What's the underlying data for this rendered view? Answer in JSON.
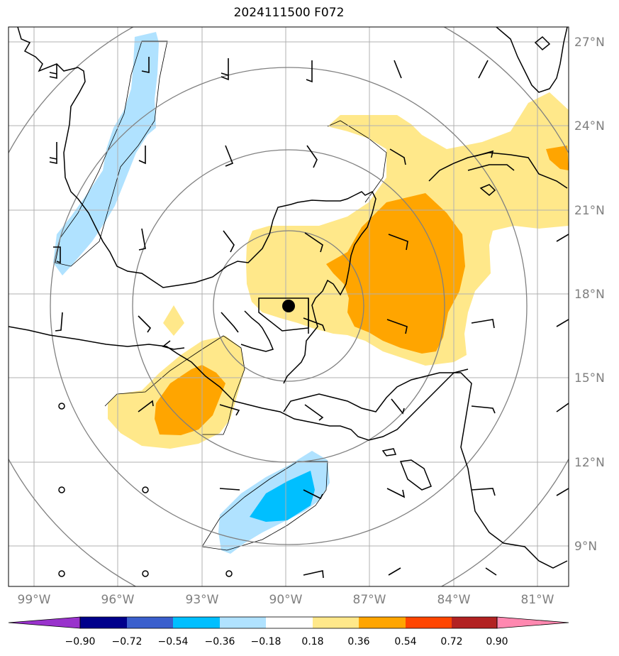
{
  "title": "2024111500 F072",
  "lat_labels": [
    "27°N",
    "24°N",
    "21°N",
    "18°N",
    "15°N",
    "12°N",
    "9°N"
  ],
  "lon_labels": [
    "99°W",
    "96°W",
    "93°W",
    "90°W",
    "87°W",
    "84°W",
    "81°W"
  ],
  "colorbar": {
    "ticks": [
      "−0.90",
      "−0.72",
      "−0.54",
      "−0.36",
      "−0.18",
      "0.18",
      "0.36",
      "0.54",
      "0.72",
      "0.90"
    ],
    "colors": [
      "#9932cc",
      "#00008b",
      "#3a5fcd",
      "#00bfff",
      "#b0e2ff",
      "#ffffff",
      "#ffe88a",
      "#ffa500",
      "#ff4500",
      "#b22222",
      "#ff88b0"
    ]
  },
  "colors": {
    "light_yellow": "#ffe88a",
    "orange": "#ffa500",
    "light_blue": "#b0e2ff",
    "deep_sky_blue": "#00bfff",
    "dark_orange": "#ff8c00"
  }
}
